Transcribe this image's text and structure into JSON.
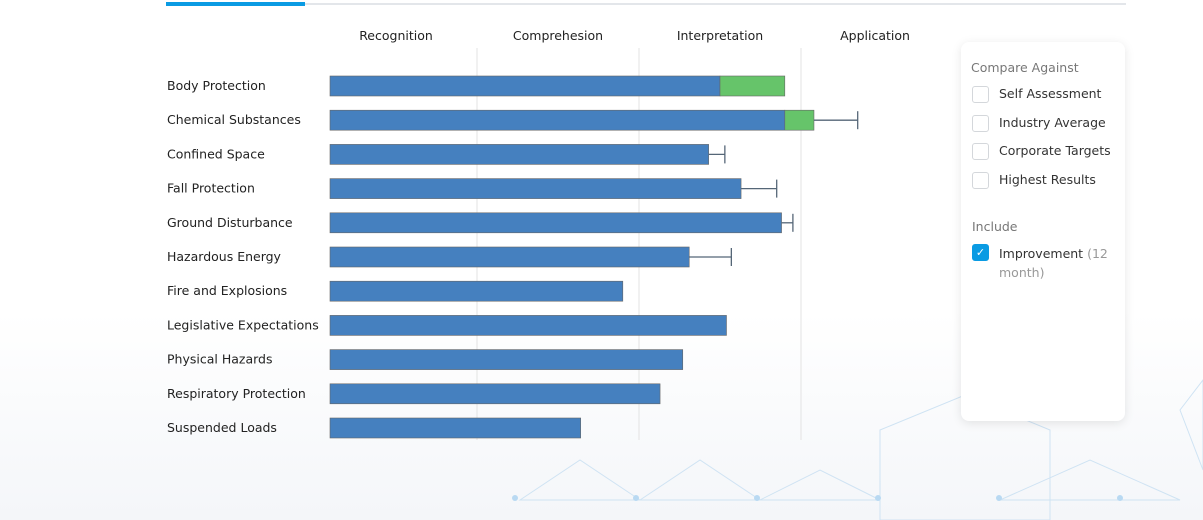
{
  "tabs": {
    "active_index": 0
  },
  "chart_data": {
    "type": "bar",
    "orientation": "horizontal",
    "stacked": true,
    "level_labels": [
      "Recognition",
      "Comprehesion",
      "Interpretation",
      "Application"
    ],
    "xlim": [
      0,
      4
    ],
    "grid": true,
    "categories": [
      "Body Protection",
      "Chemical Substances",
      "Confined Space",
      "Fall Protection",
      "Ground Disturbance",
      "Hazardous Energy",
      "Fire and Explosions",
      "Legislative Expectations",
      "Physical Hazards",
      "Respiratory Protection",
      "Suspended Loads"
    ],
    "series": [
      {
        "key": "score",
        "values": [
          2.5,
          2.9,
          2.43,
          2.63,
          2.88,
          2.31,
          1.9,
          2.54,
          2.27,
          2.13,
          1.64
        ],
        "color": "#4580bf"
      },
      {
        "key": "improvement",
        "values": [
          0.4,
          0.18,
          0,
          0,
          0,
          0,
          0,
          0,
          0,
          0,
          0
        ],
        "color": "#66c46a"
      }
    ],
    "error_upper": [
      null,
      3.35,
      2.53,
      2.85,
      2.95,
      2.57,
      null,
      null,
      null,
      null,
      null
    ]
  },
  "panel": {
    "compare_title": "Compare Against",
    "compare_options": [
      {
        "label": "Self Assessment",
        "checked": false
      },
      {
        "label": "Industry Average",
        "checked": false
      },
      {
        "label": "Corporate Targets",
        "checked": false
      },
      {
        "label": "Highest Results",
        "checked": false
      }
    ],
    "include_title": "Include",
    "include_option": {
      "label": "Improvement",
      "suffix": "(12",
      "suffix2": "month)",
      "checked": true
    }
  }
}
